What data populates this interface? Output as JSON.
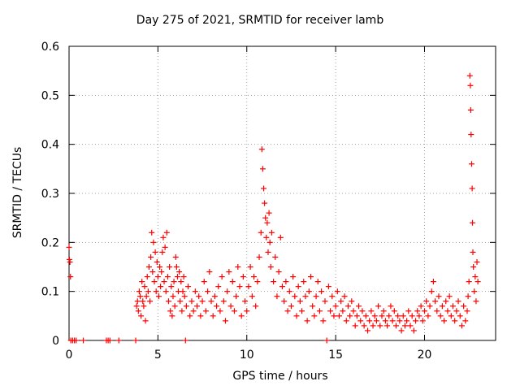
{
  "chart_data": {
    "type": "scatter",
    "title": "Day 275 of 2021, SRMTID for receiver lamb",
    "xlabel": "GPS time / hours",
    "ylabel": "SRMTID / TECUs",
    "xlim": [
      0,
      24
    ],
    "ylim": [
      0,
      0.6
    ],
    "xticks": [
      0,
      5,
      10,
      15,
      20
    ],
    "xtick_labels": [
      "0",
      "5",
      "10",
      "15",
      "20"
    ],
    "yticks": [
      0,
      0.1,
      0.2,
      0.3,
      0.4,
      0.5,
      0.6
    ],
    "ytick_labels": [
      "0",
      "0.1",
      "0.2",
      "0.3",
      "0.4",
      "0.5",
      "0.6"
    ],
    "grid": true,
    "marker": "+",
    "series_color": "#ff0000",
    "series": [
      {
        "name": "SRMTID",
        "points": [
          [
            0.0,
            0.19
          ],
          [
            0.02,
            0.165
          ],
          [
            0.05,
            0.16
          ],
          [
            0.08,
            0.13
          ],
          [
            0.1,
            0.0
          ],
          [
            0.2,
            0.0
          ],
          [
            0.3,
            0.0
          ],
          [
            0.4,
            0.0
          ],
          [
            0.8,
            0.0
          ],
          [
            2.1,
            0.0
          ],
          [
            2.2,
            0.0
          ],
          [
            2.3,
            0.0
          ],
          [
            2.8,
            0.0
          ],
          [
            3.75,
            0.0
          ],
          [
            6.55,
            0.0
          ],
          [
            14.5,
            0.0
          ],
          [
            3.8,
            0.07
          ],
          [
            3.85,
            0.08
          ],
          [
            3.9,
            0.06
          ],
          [
            3.95,
            0.1
          ],
          [
            4.0,
            0.09
          ],
          [
            4.05,
            0.05
          ],
          [
            4.1,
            0.12
          ],
          [
            4.15,
            0.08
          ],
          [
            4.2,
            0.07
          ],
          [
            4.25,
            0.11
          ],
          [
            4.3,
            0.04
          ],
          [
            4.35,
            0.09
          ],
          [
            4.4,
            0.13
          ],
          [
            4.45,
            0.1
          ],
          [
            4.5,
            0.15
          ],
          [
            4.55,
            0.08
          ],
          [
            4.6,
            0.17
          ],
          [
            4.65,
            0.22
          ],
          [
            4.7,
            0.14
          ],
          [
            4.75,
            0.2
          ],
          [
            4.8,
            0.12
          ],
          [
            4.85,
            0.18
          ],
          [
            4.9,
            0.1
          ],
          [
            4.95,
            0.16
          ],
          [
            5.0,
            0.13
          ],
          [
            5.05,
            0.09
          ],
          [
            5.1,
            0.15
          ],
          [
            5.15,
            0.11
          ],
          [
            5.2,
            0.14
          ],
          [
            5.25,
            0.18
          ],
          [
            5.3,
            0.21
          ],
          [
            5.35,
            0.12
          ],
          [
            5.4,
            0.19
          ],
          [
            5.45,
            0.1
          ],
          [
            5.5,
            0.22
          ],
          [
            5.55,
            0.13
          ],
          [
            5.6,
            0.08
          ],
          [
            5.65,
            0.15
          ],
          [
            5.7,
            0.06
          ],
          [
            5.75,
            0.11
          ],
          [
            5.8,
            0.05
          ],
          [
            5.85,
            0.09
          ],
          [
            5.9,
            0.12
          ],
          [
            5.95,
            0.07
          ],
          [
            6.0,
            0.17
          ],
          [
            6.05,
            0.15
          ],
          [
            6.1,
            0.13
          ],
          [
            6.15,
            0.1
          ],
          [
            6.2,
            0.14
          ],
          [
            6.25,
            0.08
          ],
          [
            6.3,
            0.12
          ],
          [
            6.35,
            0.06
          ],
          [
            6.4,
            0.1
          ],
          [
            6.45,
            0.13
          ],
          [
            6.5,
            0.09
          ],
          [
            6.6,
            0.07
          ],
          [
            6.7,
            0.11
          ],
          [
            6.8,
            0.05
          ],
          [
            6.9,
            0.08
          ],
          [
            7.0,
            0.06
          ],
          [
            7.1,
            0.1
          ],
          [
            7.2,
            0.07
          ],
          [
            7.3,
            0.09
          ],
          [
            7.4,
            0.05
          ],
          [
            7.5,
            0.08
          ],
          [
            7.6,
            0.12
          ],
          [
            7.7,
            0.06
          ],
          [
            7.8,
            0.1
          ],
          [
            7.9,
            0.14
          ],
          [
            8.0,
            0.08
          ],
          [
            8.1,
            0.05
          ],
          [
            8.2,
            0.09
          ],
          [
            8.3,
            0.07
          ],
          [
            8.4,
            0.11
          ],
          [
            8.5,
            0.06
          ],
          [
            8.6,
            0.13
          ],
          [
            8.7,
            0.08
          ],
          [
            8.8,
            0.04
          ],
          [
            8.9,
            0.1
          ],
          [
            9.0,
            0.14
          ],
          [
            9.1,
            0.07
          ],
          [
            9.2,
            0.12
          ],
          [
            9.3,
            0.06
          ],
          [
            9.4,
            0.09
          ],
          [
            9.5,
            0.15
          ],
          [
            9.6,
            0.11
          ],
          [
            9.7,
            0.05
          ],
          [
            9.8,
            0.13
          ],
          [
            9.9,
            0.08
          ],
          [
            10.0,
            0.06
          ],
          [
            10.1,
            0.11
          ],
          [
            10.2,
            0.15
          ],
          [
            10.3,
            0.09
          ],
          [
            10.4,
            0.13
          ],
          [
            10.5,
            0.07
          ],
          [
            10.6,
            0.12
          ],
          [
            10.7,
            0.17
          ],
          [
            10.8,
            0.22
          ],
          [
            10.85,
            0.39
          ],
          [
            10.9,
            0.35
          ],
          [
            10.95,
            0.31
          ],
          [
            11.0,
            0.28
          ],
          [
            11.05,
            0.25
          ],
          [
            11.1,
            0.21
          ],
          [
            11.15,
            0.24
          ],
          [
            11.2,
            0.18
          ],
          [
            11.25,
            0.26
          ],
          [
            11.3,
            0.2
          ],
          [
            11.35,
            0.15
          ],
          [
            11.4,
            0.22
          ],
          [
            11.5,
            0.12
          ],
          [
            11.6,
            0.17
          ],
          [
            11.7,
            0.09
          ],
          [
            11.8,
            0.14
          ],
          [
            11.9,
            0.21
          ],
          [
            12.0,
            0.11
          ],
          [
            12.1,
            0.08
          ],
          [
            12.2,
            0.12
          ],
          [
            12.3,
            0.06
          ],
          [
            12.4,
            0.1
          ],
          [
            12.5,
            0.07
          ],
          [
            12.6,
            0.13
          ],
          [
            12.7,
            0.09
          ],
          [
            12.8,
            0.05
          ],
          [
            12.9,
            0.11
          ],
          [
            13.0,
            0.08
          ],
          [
            13.1,
            0.06
          ],
          [
            13.2,
            0.12
          ],
          [
            13.3,
            0.09
          ],
          [
            13.4,
            0.04
          ],
          [
            13.5,
            0.1
          ],
          [
            13.6,
            0.13
          ],
          [
            13.7,
            0.07
          ],
          [
            13.8,
            0.05
          ],
          [
            13.9,
            0.09
          ],
          [
            14.0,
            0.12
          ],
          [
            14.1,
            0.06
          ],
          [
            14.2,
            0.1
          ],
          [
            14.3,
            0.04
          ],
          [
            14.4,
            0.08
          ],
          [
            14.6,
            0.11
          ],
          [
            14.7,
            0.06
          ],
          [
            14.8,
            0.09
          ],
          [
            14.9,
            0.05
          ],
          [
            15.0,
            0.07
          ],
          [
            15.1,
            0.1
          ],
          [
            15.2,
            0.05
          ],
          [
            15.3,
            0.08
          ],
          [
            15.4,
            0.06
          ],
          [
            15.5,
            0.09
          ],
          [
            15.6,
            0.04
          ],
          [
            15.7,
            0.07
          ],
          [
            15.8,
            0.05
          ],
          [
            15.9,
            0.08
          ],
          [
            16.0,
            0.06
          ],
          [
            16.1,
            0.03
          ],
          [
            16.2,
            0.05
          ],
          [
            16.3,
            0.07
          ],
          [
            16.4,
            0.04
          ],
          [
            16.5,
            0.06
          ],
          [
            16.6,
            0.03
          ],
          [
            16.7,
            0.05
          ],
          [
            16.8,
            0.02
          ],
          [
            16.9,
            0.04
          ],
          [
            17.0,
            0.06
          ],
          [
            17.1,
            0.03
          ],
          [
            17.2,
            0.05
          ],
          [
            17.3,
            0.04
          ],
          [
            17.4,
            0.07
          ],
          [
            17.5,
            0.03
          ],
          [
            17.6,
            0.05
          ],
          [
            17.7,
            0.06
          ],
          [
            17.8,
            0.04
          ],
          [
            17.9,
            0.03
          ],
          [
            18.0,
            0.05
          ],
          [
            18.1,
            0.07
          ],
          [
            18.2,
            0.04
          ],
          [
            18.3,
            0.06
          ],
          [
            18.4,
            0.03
          ],
          [
            18.5,
            0.05
          ],
          [
            18.6,
            0.04
          ],
          [
            18.7,
            0.02
          ],
          [
            18.8,
            0.05
          ],
          [
            18.9,
            0.03
          ],
          [
            19.0,
            0.04
          ],
          [
            19.1,
            0.06
          ],
          [
            19.2,
            0.03
          ],
          [
            19.3,
            0.05
          ],
          [
            19.4,
            0.02
          ],
          [
            19.5,
            0.04
          ],
          [
            19.6,
            0.06
          ],
          [
            19.7,
            0.05
          ],
          [
            19.8,
            0.07
          ],
          [
            19.9,
            0.04
          ],
          [
            20.0,
            0.06
          ],
          [
            20.1,
            0.08
          ],
          [
            20.2,
            0.05
          ],
          [
            20.3,
            0.07
          ],
          [
            20.4,
            0.1
          ],
          [
            20.5,
            0.12
          ],
          [
            20.6,
            0.08
          ],
          [
            20.7,
            0.06
          ],
          [
            20.8,
            0.09
          ],
          [
            20.9,
            0.05
          ],
          [
            21.0,
            0.07
          ],
          [
            21.1,
            0.04
          ],
          [
            21.2,
            0.08
          ],
          [
            21.3,
            0.06
          ],
          [
            21.4,
            0.09
          ],
          [
            21.5,
            0.05
          ],
          [
            21.6,
            0.07
          ],
          [
            21.7,
            0.04
          ],
          [
            21.8,
            0.06
          ],
          [
            21.9,
            0.08
          ],
          [
            22.0,
            0.05
          ],
          [
            22.1,
            0.03
          ],
          [
            22.2,
            0.07
          ],
          [
            22.3,
            0.04
          ],
          [
            22.4,
            0.06
          ],
          [
            22.45,
            0.09
          ],
          [
            22.5,
            0.12
          ],
          [
            22.55,
            0.54
          ],
          [
            22.58,
            0.52
          ],
          [
            22.6,
            0.47
          ],
          [
            22.62,
            0.42
          ],
          [
            22.65,
            0.36
          ],
          [
            22.68,
            0.31
          ],
          [
            22.7,
            0.24
          ],
          [
            22.72,
            0.18
          ],
          [
            22.75,
            0.15
          ],
          [
            22.8,
            0.1
          ],
          [
            22.85,
            0.13
          ],
          [
            22.9,
            0.08
          ],
          [
            22.95,
            0.16
          ],
          [
            23.0,
            0.12
          ]
        ]
      }
    ]
  }
}
